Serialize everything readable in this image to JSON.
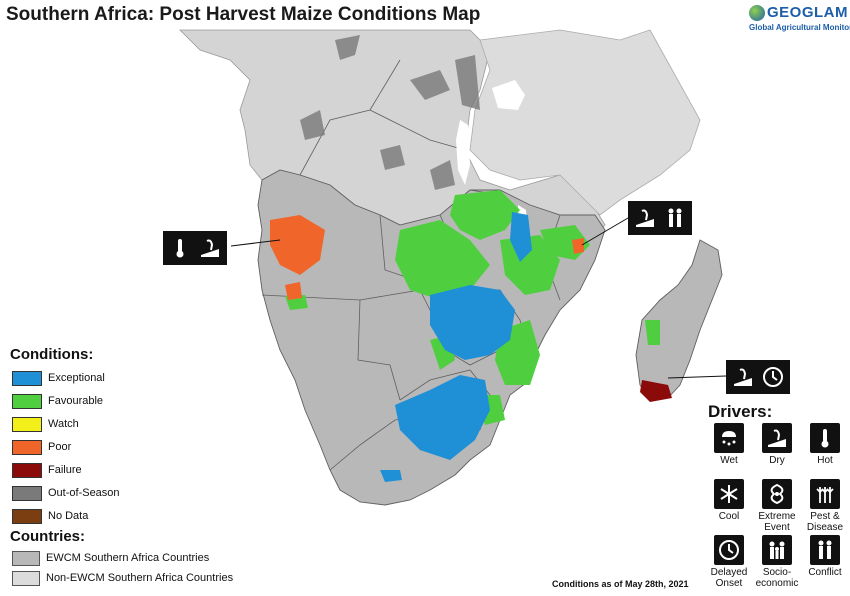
{
  "title": "Southern Africa: Post Harvest Maize Conditions Map",
  "logo": {
    "name": "GEOGLAM",
    "subtitle": "Global Agricultural Monitoring"
  },
  "conditions": {
    "heading": "Conditions:",
    "items": [
      {
        "label": "Exceptional",
        "color": "#1f8fd6"
      },
      {
        "label": "Favourable",
        "color": "#4fcf3f"
      },
      {
        "label": "Watch",
        "color": "#f2ef1a"
      },
      {
        "label": "Poor",
        "color": "#f0652a"
      },
      {
        "label": "Failure",
        "color": "#8b0a0a"
      },
      {
        "label": "Out-of-Season",
        "color": "#7a7a7a"
      },
      {
        "label": "No Data",
        "color": "#7a3e10"
      }
    ]
  },
  "countries": {
    "heading": "Countries:",
    "items": [
      {
        "label": "EWCM Southern Africa Countries",
        "color": "#b8b8b8"
      },
      {
        "label": "Non-EWCM Southern Africa Countries",
        "color": "#dcdcdc"
      }
    ]
  },
  "drivers": {
    "heading": "Drivers:",
    "items": [
      {
        "label": "Wet",
        "icon": "wet-icon"
      },
      {
        "label": "Dry",
        "icon": "dry-icon"
      },
      {
        "label": "Hot",
        "icon": "hot-icon"
      },
      {
        "label": "Cool",
        "icon": "cool-icon"
      },
      {
        "label": "Extreme Event",
        "icon": "extreme-event-icon"
      },
      {
        "label": "Pest & Disease",
        "icon": "pest-disease-icon"
      },
      {
        "label": "Delayed Onset",
        "icon": "delayed-onset-icon"
      },
      {
        "label": "Socio-economic",
        "icon": "socio-economic-icon"
      },
      {
        "label": "Conflict",
        "icon": "conflict-icon"
      }
    ]
  },
  "date_note": "Conditions as of May 28th, 2021",
  "map_colors": {
    "ewcm": "#b8b8b8",
    "non_ewcm": "#dcdcdc",
    "water": "#ffffff",
    "border": "#5f5f5f"
  }
}
